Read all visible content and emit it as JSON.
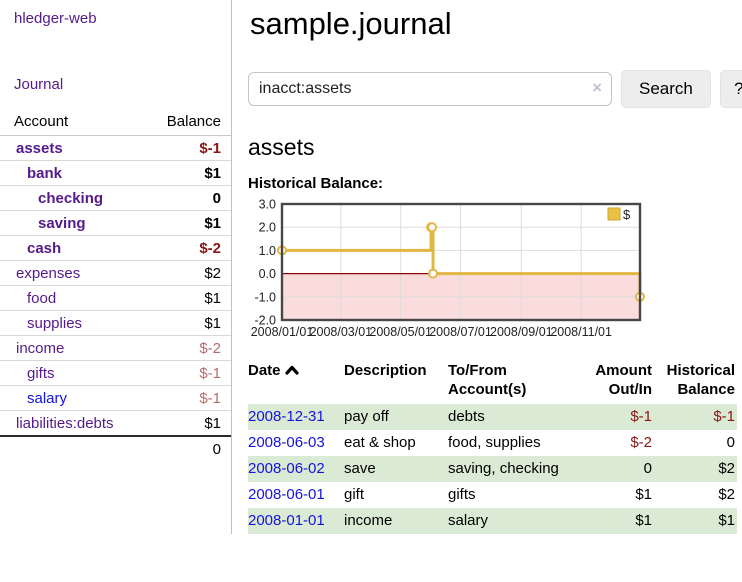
{
  "app": {
    "brand": "hledger-web"
  },
  "sidebar": {
    "journal_label": "Journal",
    "accounts": {
      "header": {
        "account": "Account",
        "balance": "Balance"
      },
      "rows": [
        {
          "name": "assets",
          "balance": "$-1",
          "indent": 1,
          "bold": true,
          "link": "visited",
          "bal": "neg"
        },
        {
          "name": "bank",
          "balance": "$1",
          "indent": 2,
          "bold": true,
          "link": "visited",
          "bal": "pos"
        },
        {
          "name": "checking",
          "balance": "0",
          "indent": 3,
          "bold": true,
          "link": "visited",
          "bal": "pos"
        },
        {
          "name": "saving",
          "balance": "$1",
          "indent": 3,
          "bold": true,
          "link": "visited",
          "bal": "pos"
        },
        {
          "name": "cash",
          "balance": "$-2",
          "indent": 2,
          "bold": true,
          "link": "visited",
          "bal": "neg"
        },
        {
          "name": "expenses",
          "balance": "$2",
          "indent": 1,
          "bold": false,
          "link": "visited",
          "bal": "pos"
        },
        {
          "name": "food",
          "balance": "$1",
          "indent": 2,
          "bold": false,
          "link": "visited",
          "bal": "pos"
        },
        {
          "name": "supplies",
          "balance": "$1",
          "indent": 2,
          "bold": false,
          "link": "visited",
          "bal": "pos"
        },
        {
          "name": "income",
          "balance": "$-2",
          "indent": 1,
          "bold": false,
          "link": "visited",
          "bal": "neg-muted"
        },
        {
          "name": "gifts",
          "balance": "$-1",
          "indent": 2,
          "bold": false,
          "link": "visited",
          "bal": "neg-muted"
        },
        {
          "name": "salary",
          "balance": "$-1",
          "indent": 2,
          "bold": false,
          "link": "unvisited",
          "bal": "neg-muted"
        },
        {
          "name": "liabilities:debts",
          "balance": "$1",
          "indent": 1,
          "bold": false,
          "link": "visited",
          "bal": "pos"
        }
      ],
      "total": "0"
    }
  },
  "main": {
    "title": "sample.journal",
    "search": {
      "value": "inacct:assets",
      "clear_label": "×",
      "button_label": "Search",
      "help_label": "?"
    },
    "account_heading": "assets",
    "chart_title": "Historical Balance:"
  },
  "chart_data": {
    "type": "line",
    "step": true,
    "title": "Historical Balance:",
    "series": [
      {
        "name": "$",
        "x": [
          "2008-01-01",
          "2008-06-01",
          "2008-06-02",
          "2008-06-03",
          "2008-12-31"
        ],
        "values": [
          1,
          2,
          2,
          0,
          -1
        ]
      }
    ],
    "xlim": [
      "2008-01-01",
      "2008-12-31"
    ],
    "ylim": [
      -2,
      3
    ],
    "yticks": [
      3.0,
      2.0,
      1.0,
      0.0,
      -1.0,
      -2.0
    ],
    "xticks": [
      "2008/01/01",
      "2008/03/01",
      "2008/05/01",
      "2008/07/01",
      "2008/09/01",
      "2008/11/01"
    ],
    "legend": {
      "label": "$",
      "position": "top-right"
    },
    "grid": true,
    "colors": {
      "line": "#e2b644",
      "marker_fill": "#ffffff",
      "legend_fill": "#eac23f",
      "negative_region": "#fadcdc",
      "zero_line": "#8b0000",
      "grid": "#dddddd",
      "border": "#474747",
      "tick_text": "#222222"
    }
  },
  "register": {
    "headers": {
      "date": "Date",
      "description": "Description",
      "accounts": "To/From Account(s)",
      "amount": "Amount Out/In",
      "balance": "Historical Balance"
    },
    "rows": [
      {
        "date": "2008-12-31",
        "description": "pay off",
        "accounts": "debts",
        "amount": "$-1",
        "amount_class": "neg",
        "balance": "$-1",
        "balance_class": "neg",
        "shaded": true
      },
      {
        "date": "2008-06-03",
        "description": "eat & shop",
        "accounts": "food, supplies",
        "amount": "$-2",
        "amount_class": "neg",
        "balance": "0",
        "balance_class": "pos",
        "shaded": false
      },
      {
        "date": "2008-06-02",
        "description": "save",
        "accounts": "saving, checking",
        "amount": "0",
        "amount_class": "pos",
        "balance": "$2",
        "balance_class": "pos",
        "shaded": true
      },
      {
        "date": "2008-06-01",
        "description": "gift",
        "accounts": "gifts",
        "amount": "$1",
        "amount_class": "pos",
        "balance": "$2",
        "balance_class": "pos",
        "shaded": false
      },
      {
        "date": "2008-01-01",
        "description": "income",
        "accounts": "salary",
        "amount": "$1",
        "amount_class": "pos",
        "balance": "$1",
        "balance_class": "pos",
        "shaded": true
      }
    ]
  }
}
